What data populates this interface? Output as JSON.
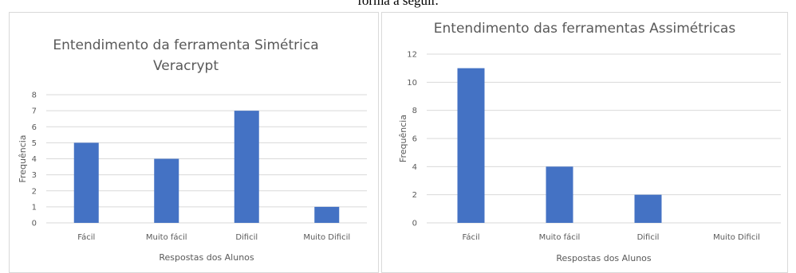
{
  "caption": "forma a seguir.",
  "chart_data": [
    {
      "type": "bar",
      "title_lines": [
        "Entendimento da ferramenta Simétrica",
        "Veracrypt"
      ],
      "categories": [
        "Fácil",
        "Muito fácil",
        "Dificil",
        "Muito Dificil"
      ],
      "values": [
        5,
        4,
        7,
        1
      ],
      "xlabel": "Respostas dos Alunos",
      "ylabel": "Frequência",
      "ylim": [
        0,
        8
      ],
      "yticks": [
        0,
        1,
        2,
        3,
        4,
        5,
        6,
        7,
        8
      ],
      "grid": true,
      "color": "#4472c4"
    },
    {
      "type": "bar",
      "title_lines": [
        "Entendimento das ferramentas Assimétricas"
      ],
      "categories": [
        "Fácil",
        "Muito fácil",
        "Dificil",
        "Muito Dificil"
      ],
      "values": [
        11,
        4,
        2,
        0
      ],
      "xlabel": "Respostas dos Alunos",
      "ylabel": "Frequência",
      "ylim": [
        0,
        12
      ],
      "yticks": [
        0,
        2,
        4,
        6,
        8,
        10,
        12
      ],
      "grid": true,
      "color": "#4472c4"
    }
  ]
}
